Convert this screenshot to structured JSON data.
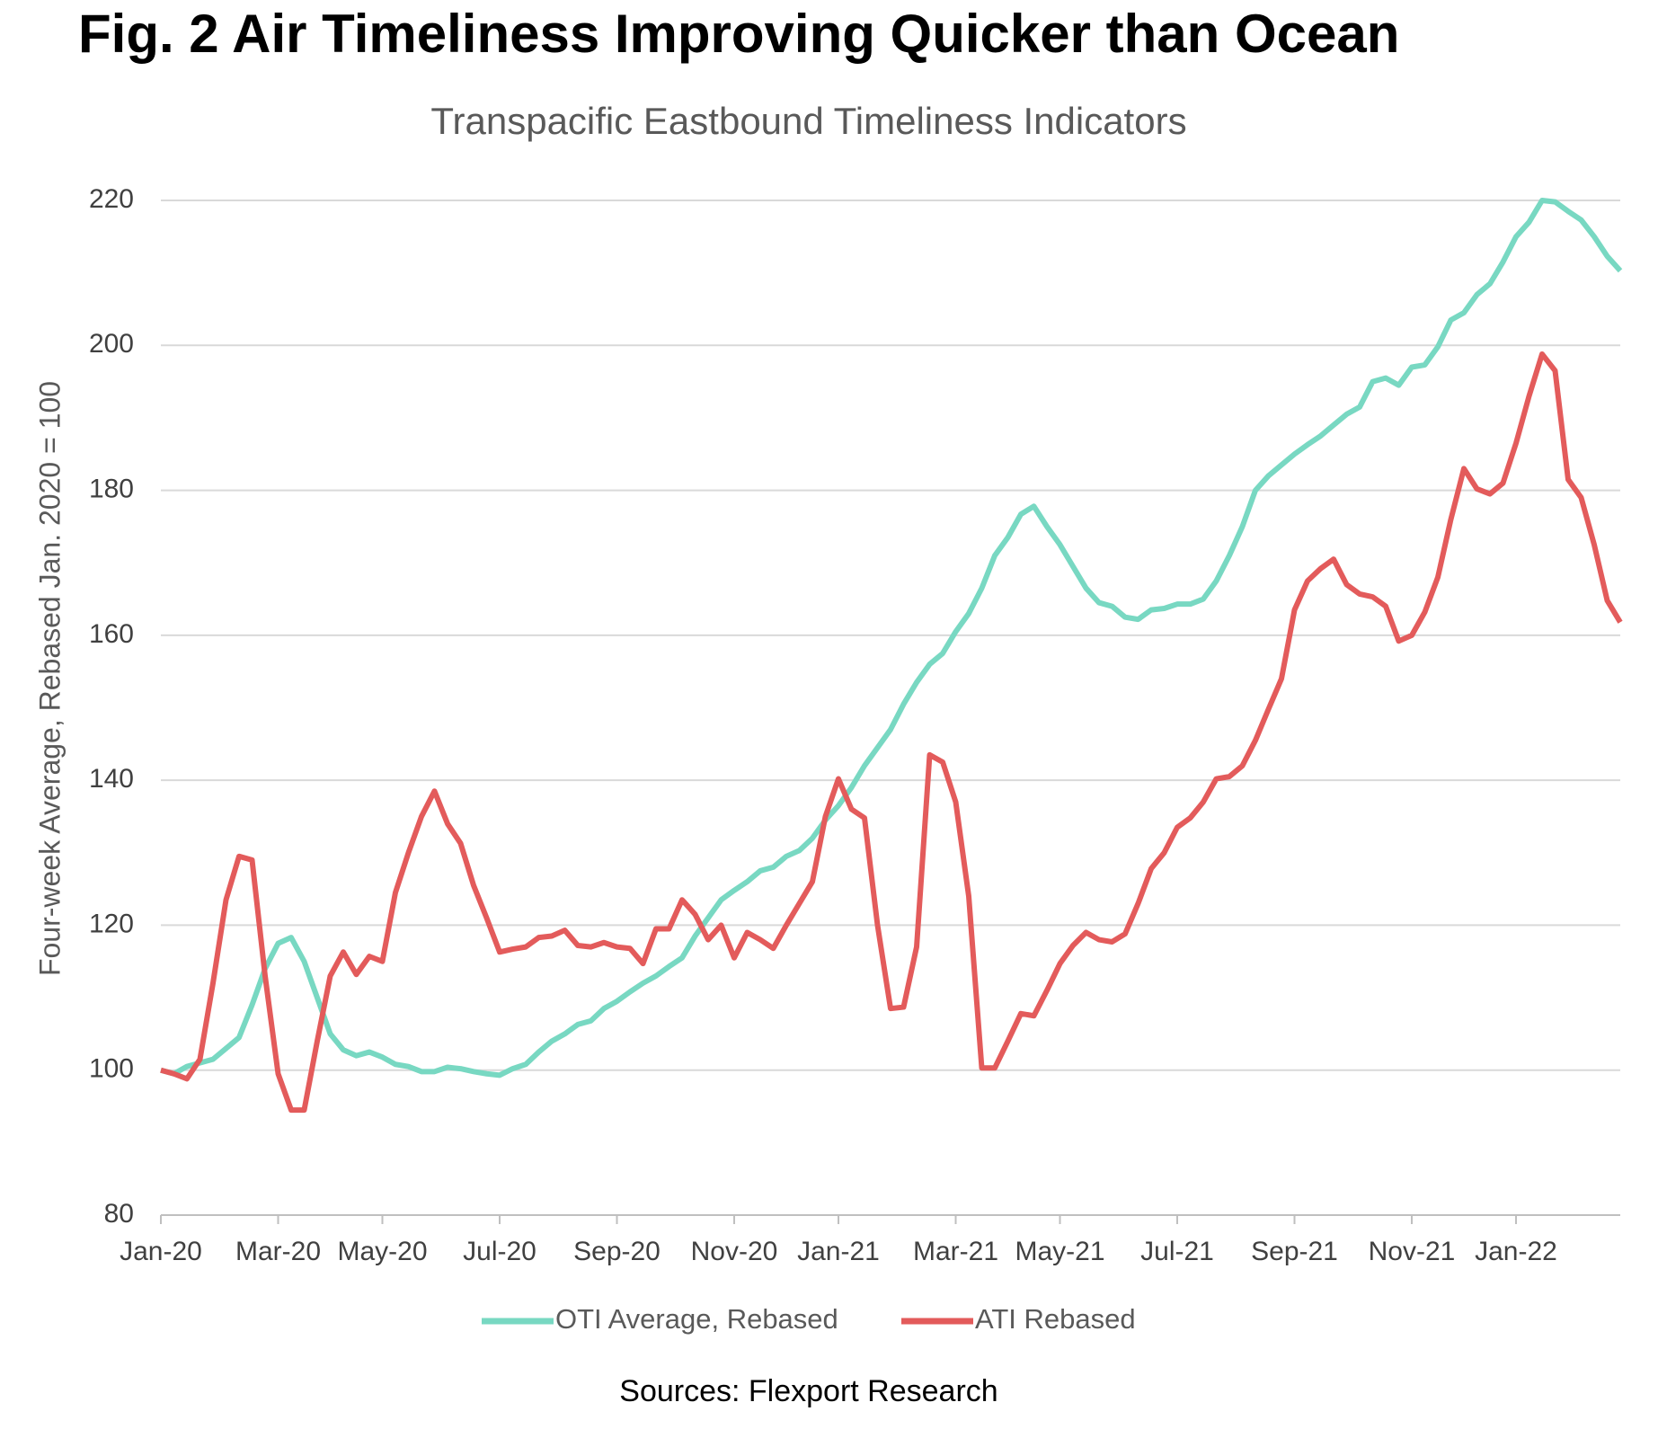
{
  "chart_data": {
    "type": "line",
    "title": "Fig. 2 Air Timeliness Improving Quicker than Ocean",
    "subtitle": "Transpacific Eastbound Timeliness Indicators",
    "y_label": "Four-week Average, Rebased Jan. 2020 = 100",
    "source": "Sources: Flexport Research",
    "ylim": [
      80,
      220
    ],
    "yticks": [
      80,
      100,
      120,
      140,
      160,
      180,
      200,
      220
    ],
    "grid": true,
    "legend": "bottom",
    "categories": [
      "Jan-20",
      null,
      null,
      null,
      null,
      null,
      null,
      null,
      null,
      "Mar-20",
      null,
      null,
      null,
      null,
      null,
      null,
      null,
      "May-20",
      null,
      null,
      null,
      null,
      null,
      null,
      null,
      null,
      "Jul-20",
      null,
      null,
      null,
      null,
      null,
      null,
      null,
      null,
      "Sep-20",
      null,
      null,
      null,
      null,
      null,
      null,
      null,
      null,
      "Nov-20",
      null,
      null,
      null,
      null,
      null,
      null,
      null,
      "Jan-21",
      null,
      null,
      null,
      null,
      null,
      null,
      null,
      null,
      "Mar-21",
      null,
      null,
      null,
      null,
      null,
      null,
      null,
      "May-21",
      null,
      null,
      null,
      null,
      null,
      null,
      null,
      null,
      "Jul-21",
      null,
      null,
      null,
      null,
      null,
      null,
      null,
      null,
      "Sep-21",
      null,
      null,
      null,
      null,
      null,
      null,
      null,
      null,
      "Nov-21",
      null,
      null,
      null,
      null,
      null,
      null,
      null,
      "Jan-22",
      null,
      null,
      null,
      null,
      null,
      null,
      null,
      null
    ],
    "series": [
      {
        "name": "OTI Average, Rebased",
        "color": "#78d8c2",
        "values": [
          100,
          99.5,
          100.5,
          101,
          101.5,
          103,
          104.5,
          109,
          114,
          117.5,
          118.3,
          115,
          110,
          105,
          102.8,
          102,
          102.5,
          101.8,
          100.8,
          100.5,
          99.8,
          99.8,
          100.4,
          100.2,
          99.8,
          99.5,
          99.3,
          100.2,
          100.8,
          102.5,
          104,
          105,
          106.3,
          106.8,
          108.5,
          109.5,
          110.8,
          112,
          113,
          114.3,
          115.5,
          118.5,
          121,
          123.5,
          124.8,
          126,
          127.5,
          128,
          129.5,
          130.3,
          132,
          134.5,
          136.5,
          139,
          142,
          144.5,
          147,
          150.5,
          153.5,
          156,
          157.5,
          160.5,
          163,
          166.5,
          171,
          173.5,
          176.7,
          177.8,
          175,
          172.5,
          169.5,
          166.5,
          164.5,
          164,
          162.5,
          162.2,
          163.5,
          163.7,
          164.3,
          164.3,
          165,
          167.5,
          171,
          175,
          180,
          182,
          183.5,
          185,
          186.3,
          187.5,
          189,
          190.5,
          191.5,
          195,
          195.5,
          194.5,
          197,
          197.3,
          199.8,
          203.5,
          204.5,
          207,
          208.5,
          211.5,
          215,
          217,
          220,
          219.8,
          218.5,
          217.3,
          215,
          212.3,
          210.3
        ]
      },
      {
        "name": "ATI Rebased",
        "color": "#e35b5b",
        "values": [
          100,
          99.5,
          98.8,
          101.5,
          112,
          123.5,
          129.5,
          129,
          113,
          99.5,
          94.5,
          94.5,
          104,
          113,
          116.3,
          113.2,
          115.7,
          115,
          124.5,
          130,
          135,
          138.5,
          134,
          131.3,
          125.5,
          121,
          116.3,
          116.7,
          117,
          118.3,
          118.5,
          119.3,
          117.2,
          117,
          117.6,
          117,
          116.8,
          114.7,
          119.5,
          119.5,
          123.5,
          121.5,
          118,
          120,
          115.5,
          119,
          118,
          116.8,
          120,
          123,
          126,
          135,
          140.2,
          136,
          134.8,
          120,
          108.5,
          108.7,
          117,
          143.5,
          142.5,
          137,
          124,
          100.3,
          100.3,
          104,
          107.8,
          107.5,
          111,
          114.7,
          117.2,
          119,
          118,
          117.7,
          118.8,
          123,
          127.8,
          130,
          133.5,
          134.8,
          137,
          140.2,
          140.5,
          142,
          145.5,
          149.8,
          154,
          163.5,
          167.5,
          169.2,
          170.5,
          167,
          165.7,
          165.3,
          164,
          159.2,
          160,
          163.2,
          168,
          176,
          183,
          180.2,
          179.5,
          181,
          186.5,
          193,
          198.8,
          196.5,
          181.5,
          179,
          172.5,
          164.8,
          161.8
        ]
      }
    ]
  }
}
